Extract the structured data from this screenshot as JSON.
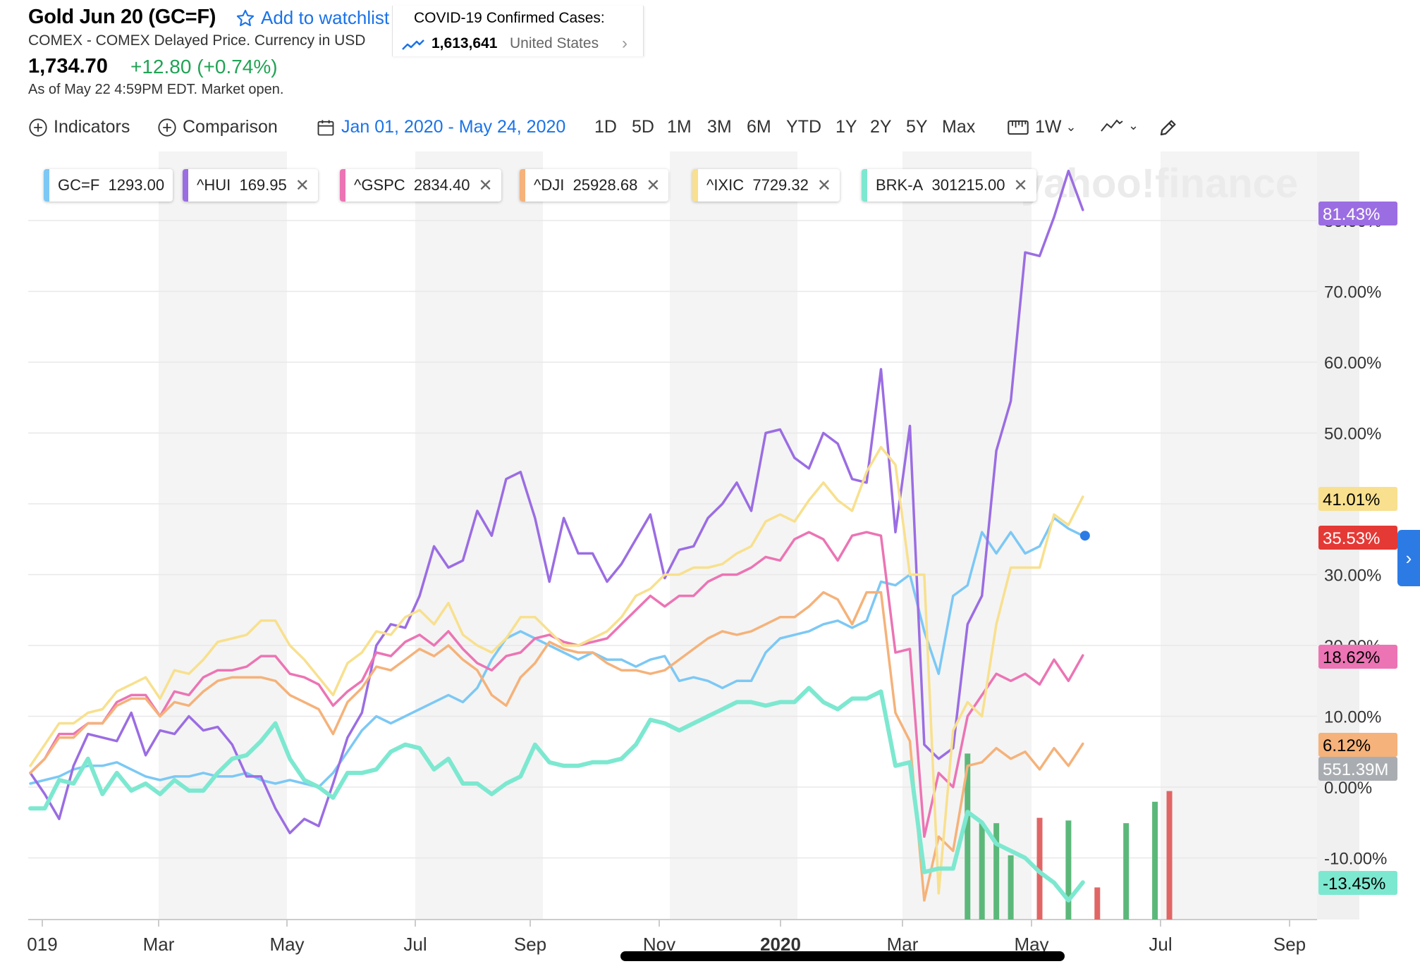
{
  "header": {
    "title": "Gold Jun 20 (GC=F)",
    "watchlist_label": "Add to watchlist",
    "subtitle": "COMEX - COMEX Delayed Price. Currency in USD",
    "price": "1,734.70",
    "change": "+12.80 (+0.74%)",
    "as_of": "As of May 22 4:59PM EDT. Market open."
  },
  "covid": {
    "title": "COVID-19 Confirmed Cases:",
    "count": "1,613,641",
    "region": "United States"
  },
  "toolbar": {
    "indicators": "Indicators",
    "comparison": "Comparison",
    "date_range": "Jan 01, 2020 - May 24, 2020",
    "ranges": [
      "1D",
      "5D",
      "1M",
      "3M",
      "6M",
      "YTD",
      "1Y",
      "2Y",
      "5Y",
      "Max"
    ],
    "interval": "1W"
  },
  "legend": [
    {
      "symbol": "GC=F",
      "value": "1293.00",
      "color": "#7cc8f5",
      "removable": false
    },
    {
      "symbol": "^HUI",
      "value": "169.95",
      "color": "#9b6de3",
      "removable": true
    },
    {
      "symbol": "^GSPC",
      "value": "2834.40",
      "color": "#ec74b4",
      "removable": true
    },
    {
      "symbol": "^DJI",
      "value": "25928.68",
      "color": "#f5b27a",
      "removable": true
    },
    {
      "symbol": "^IXIC",
      "value": "7729.32",
      "color": "#f8e08e",
      "removable": true
    },
    {
      "symbol": "BRK-A",
      "value": "301215.00",
      "color": "#7de8d0",
      "removable": true
    }
  ],
  "watermark": "yahoo!finance",
  "chart_data": {
    "type": "line",
    "x_ticks": [
      "019",
      "Mar",
      "May",
      "Jul",
      "Sep",
      "Nov",
      "2020",
      "Mar",
      "May",
      "Jul",
      "Sep"
    ],
    "y_ticks": [
      "80.00%",
      "70.00%",
      "60.00%",
      "50.00%",
      "40.00%",
      "30.00%",
      "20.00%",
      "10.00%",
      "0.00%",
      "-10.00%"
    ],
    "ylim": [
      -18,
      90
    ],
    "volume_label": "551.39M",
    "series": [
      {
        "name": "GC=F",
        "color": "#7cc8f5",
        "last_label": "35.53%",
        "label_color": "#e53935",
        "values": [
          0.5,
          1,
          1.5,
          2.5,
          3,
          3,
          3.5,
          2.5,
          1.5,
          1,
          1.5,
          1.5,
          2,
          1.5,
          1.5,
          2,
          1,
          0.5,
          1,
          0.5,
          0,
          2,
          5,
          8,
          10,
          9,
          10,
          11,
          12,
          13,
          12,
          14,
          18,
          21,
          22,
          21,
          20,
          19,
          18,
          19,
          18,
          18,
          17,
          18,
          18.5,
          15,
          15.5,
          15,
          14,
          15,
          15,
          19,
          21,
          21.5,
          22,
          23,
          23.5,
          22.5,
          23.5,
          29,
          28.5,
          30,
          22,
          16,
          27,
          28.5,
          36,
          33,
          36,
          33,
          34,
          38,
          36.5,
          35.5
        ]
      },
      {
        "name": "^HUI",
        "color": "#9b6de3",
        "last_label": "81.43%",
        "label_color": "#9b6de3",
        "values": [
          2,
          -1,
          -4.5,
          3,
          7.5,
          7,
          6.5,
          10.5,
          4.5,
          8,
          7.5,
          10,
          8,
          8.5,
          6,
          1.5,
          1.5,
          -3,
          -6.5,
          -4.5,
          -5.5,
          0.5,
          7,
          10.5,
          20,
          23,
          22.5,
          27,
          34,
          31,
          32,
          39,
          35.5,
          43.5,
          44.5,
          38,
          29,
          38,
          33,
          33,
          29,
          31.5,
          35,
          38.5,
          29.5,
          33.5,
          34,
          38,
          40,
          43,
          39,
          50,
          50.5,
          46.5,
          45,
          50,
          48.5,
          43.5,
          43,
          59,
          36,
          51,
          6,
          4,
          5.5,
          23,
          27,
          47.5,
          54.5,
          75.5,
          75,
          80.5,
          87,
          81.5
        ]
      },
      {
        "name": "^GSPC",
        "color": "#ec74b4",
        "last_label": "18.62%",
        "label_color": "#ec74b4",
        "values": [
          2,
          4,
          7.5,
          7.5,
          9,
          9,
          12,
          13,
          13,
          10,
          13.5,
          13,
          15.5,
          16.5,
          16.5,
          17,
          18.5,
          18.5,
          16,
          15.5,
          14.5,
          11.5,
          13.5,
          15,
          19,
          18.5,
          20.5,
          21.5,
          20,
          22,
          19.5,
          17.5,
          16.5,
          18.5,
          19,
          21,
          21.5,
          20.5,
          20,
          20.5,
          21,
          23,
          25,
          27,
          25.5,
          27,
          27,
          29,
          30,
          30,
          31,
          32.5,
          32,
          35,
          36,
          35,
          32,
          35.5,
          36,
          35.5,
          19,
          19.5,
          -7,
          2,
          0,
          10,
          13,
          16,
          15,
          16,
          14.5,
          18,
          15,
          18.6
        ]
      },
      {
        "name": "^DJI",
        "color": "#f5b27a",
        "last_label": "6.12%",
        "label_color": "#f5b27a",
        "values": [
          2,
          4,
          7,
          7,
          9,
          9,
          11.5,
          12.5,
          12.5,
          10,
          12,
          11.5,
          13.5,
          15,
          15.5,
          15.5,
          15.5,
          15,
          13,
          12,
          11,
          7.5,
          12,
          14,
          17,
          16.5,
          18,
          19.5,
          18.5,
          20,
          18,
          16.5,
          13,
          11.5,
          15.5,
          17.5,
          20.5,
          19.5,
          19,
          19,
          17.5,
          16.5,
          16.5,
          16,
          16.5,
          18,
          19.5,
          21,
          22,
          21.5,
          22,
          23,
          24,
          24,
          25.5,
          27.5,
          26.5,
          23,
          27.5,
          27.5,
          10.5,
          6.5,
          -16,
          -7,
          -9,
          3,
          3.5,
          5.5,
          4,
          5,
          2.5,
          5.5,
          3,
          6.12
        ]
      },
      {
        "name": "^IXIC",
        "color": "#f8e08e",
        "last_label": "41.01%",
        "label_color": "#f8e08e",
        "values": [
          3,
          6,
          9,
          9,
          10.5,
          11,
          13.5,
          14.5,
          15.5,
          12.5,
          16.5,
          16,
          18,
          20.5,
          21,
          21.5,
          23.5,
          23.5,
          20,
          18,
          15.5,
          13,
          17.5,
          19,
          22,
          21.5,
          24,
          25,
          23,
          26,
          21.5,
          20,
          19,
          21,
          24,
          24,
          22,
          20,
          20,
          21,
          22,
          24,
          27,
          28,
          30,
          30,
          31,
          31,
          31.5,
          33,
          34,
          37.5,
          38.5,
          37.5,
          40.5,
          43,
          40.5,
          39,
          44.5,
          48,
          45.5,
          30,
          30,
          -15,
          8,
          12,
          10,
          23,
          31,
          31,
          31,
          38.5,
          37,
          41
        ]
      },
      {
        "name": "BRK-A",
        "color": "#7de8d0",
        "last_label": "-13.45%",
        "label_color": "#7de8d0",
        "values": [
          -3,
          -3,
          1,
          0.5,
          4,
          -1,
          2,
          -0.5,
          0.5,
          -1,
          1,
          -0.5,
          -0.5,
          2,
          4,
          4.5,
          6.5,
          9,
          4,
          1,
          0,
          -1.5,
          2,
          2,
          2.5,
          5,
          6,
          5.5,
          2.5,
          4,
          0.5,
          0.5,
          -1,
          0.5,
          1.5,
          6,
          3.5,
          3,
          3,
          3.5,
          3.5,
          4,
          6,
          9.5,
          9,
          8,
          9,
          10,
          11,
          12,
          12,
          11.5,
          12,
          12,
          14,
          12,
          11,
          12.5,
          12.5,
          13.5,
          3,
          3.5,
          -12,
          -11.5,
          -11.5,
          -3.5,
          -5,
          -8,
          -9,
          -10,
          -12,
          -13.5,
          -16,
          -13.45
        ]
      }
    ],
    "volume": [
      {
        "x": 65,
        "value": 62,
        "color": "#5cb87a"
      },
      {
        "x": 66,
        "value": 36,
        "color": "#5cb87a"
      },
      {
        "x": 67,
        "value": 36,
        "color": "#5cb87a"
      },
      {
        "x": 68,
        "value": 24,
        "color": "#5cb87a"
      },
      {
        "x": 70,
        "value": 38,
        "color": "#e06666"
      },
      {
        "x": 72,
        "value": 37,
        "color": "#5cb87a"
      },
      {
        "x": 74,
        "value": 12,
        "color": "#e06666"
      },
      {
        "x": 76,
        "value": 36,
        "color": "#5cb87a"
      },
      {
        "x": 78,
        "value": 44,
        "color": "#5cb87a"
      },
      {
        "x": 79,
        "value": 48,
        "color": "#e06666"
      }
    ]
  }
}
